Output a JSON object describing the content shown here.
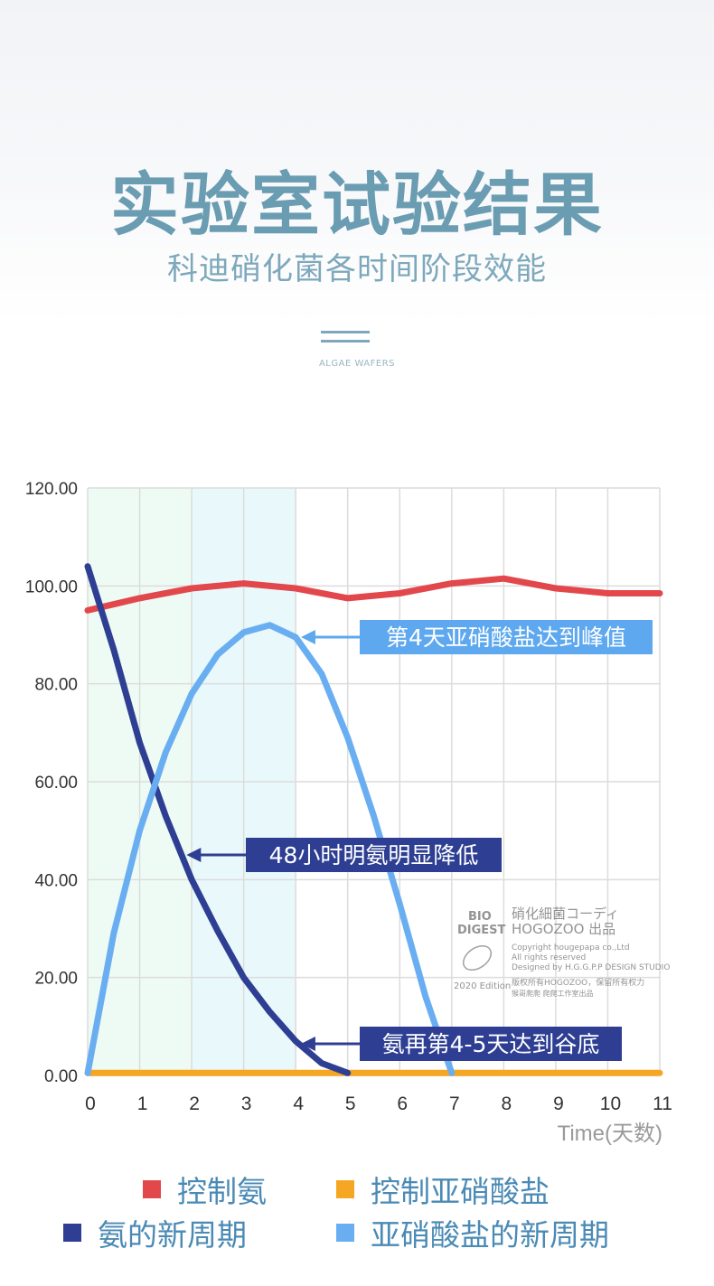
{
  "header": {
    "title": "实验室试验结果",
    "subtitle": "科迪硝化菌各时间阶段效能",
    "tagline": "ALGAE WAFERS"
  },
  "chart_data": {
    "type": "line",
    "x": [
      0,
      1,
      2,
      3,
      4,
      5,
      6,
      7,
      8,
      9,
      10,
      11
    ],
    "xlim": [
      0,
      11
    ],
    "ylim": [
      0,
      120
    ],
    "y_ticks": [
      "0.00",
      "20.00",
      "40.00",
      "60.00",
      "80.00",
      "100.00",
      "120.00"
    ],
    "x_ticks": [
      "0",
      "1",
      "2",
      "3",
      "4",
      "5",
      "6",
      "7",
      "8",
      "9",
      "10",
      "11"
    ],
    "xlabel": "Time(天数)",
    "ylabel": "",
    "grid": true,
    "shaded_regions": [
      {
        "from": 0,
        "to": 2,
        "color": "#eefbf5"
      },
      {
        "from": 2,
        "to": 4,
        "color": "#e9f8fb"
      }
    ],
    "series": [
      {
        "name": "控制氨",
        "color": "#e2474b",
        "points": [
          [
            0,
            95
          ],
          [
            1,
            97.5
          ],
          [
            2,
            99.5
          ],
          [
            3,
            100.5
          ],
          [
            4,
            99.5
          ],
          [
            5,
            97.5
          ],
          [
            6,
            98.5
          ],
          [
            7,
            100.5
          ],
          [
            8,
            101.5
          ],
          [
            9,
            99.5
          ],
          [
            10,
            98.5
          ],
          [
            11,
            98.5
          ]
        ]
      },
      {
        "name": "控制亚硝酸盐",
        "color": "#f5a623",
        "points": [
          [
            0,
            0.5
          ],
          [
            11,
            0.5
          ]
        ]
      },
      {
        "name": "氨的新周期",
        "color": "#2e3f93",
        "points": [
          [
            0,
            104
          ],
          [
            0.5,
            87
          ],
          [
            1,
            68
          ],
          [
            1.5,
            53
          ],
          [
            2,
            40
          ],
          [
            2.5,
            29.5
          ],
          [
            3,
            20
          ],
          [
            3.5,
            13
          ],
          [
            4,
            7
          ],
          [
            4.5,
            2.5
          ],
          [
            5,
            0.5
          ]
        ]
      },
      {
        "name": "亚硝酸盐的新周期",
        "color": "#6aaef2",
        "points": [
          [
            0,
            0.5
          ],
          [
            0.5,
            29
          ],
          [
            1,
            50
          ],
          [
            1.5,
            66
          ],
          [
            2,
            78
          ],
          [
            2.5,
            86
          ],
          [
            3,
            90.5
          ],
          [
            3.5,
            92
          ],
          [
            4,
            89.5
          ],
          [
            4.5,
            82
          ],
          [
            5,
            69
          ],
          [
            5.5,
            53
          ],
          [
            6,
            35
          ],
          [
            6.5,
            16
          ],
          [
            7,
            0.5
          ]
        ]
      }
    ],
    "annotations": [
      {
        "text": "第4天亚硝酸盐达到峰值",
        "x": 4.1,
        "y": 92,
        "bg": "#5da8ef"
      },
      {
        "text": "48小时明氨明显降低",
        "x": 1.9,
        "y": 42,
        "bg": "#2e3f93"
      },
      {
        "text": "氨再第4-5天达到谷底",
        "x": 4.1,
        "y": 7.5,
        "bg": "#2e3f93"
      }
    ],
    "watermark": {
      "logo_top": "BIO",
      "logo_bottom": "DIGEST",
      "edition": "2020 Edition",
      "lines": [
        "硝化細菌コーディ",
        "HOGOZOO 出品",
        "Copyright  hougepapa co.,Ltd",
        "All rights reserved",
        "Designed by H.G.G.P.P DESIGN STUDIO",
        "版权所有HOGOZOO，保留所有权力",
        "猴哥爬爬 爬爬工作室出品"
      ]
    }
  },
  "legend": [
    {
      "label": "控制氨",
      "color": "#e2474b"
    },
    {
      "label": "控制亚硝酸盐",
      "color": "#f5a623"
    },
    {
      "label": "氨的新周期",
      "color": "#2e3f93"
    },
    {
      "label": "亚硝酸盐的新周期",
      "color": "#6aaef2"
    }
  ]
}
